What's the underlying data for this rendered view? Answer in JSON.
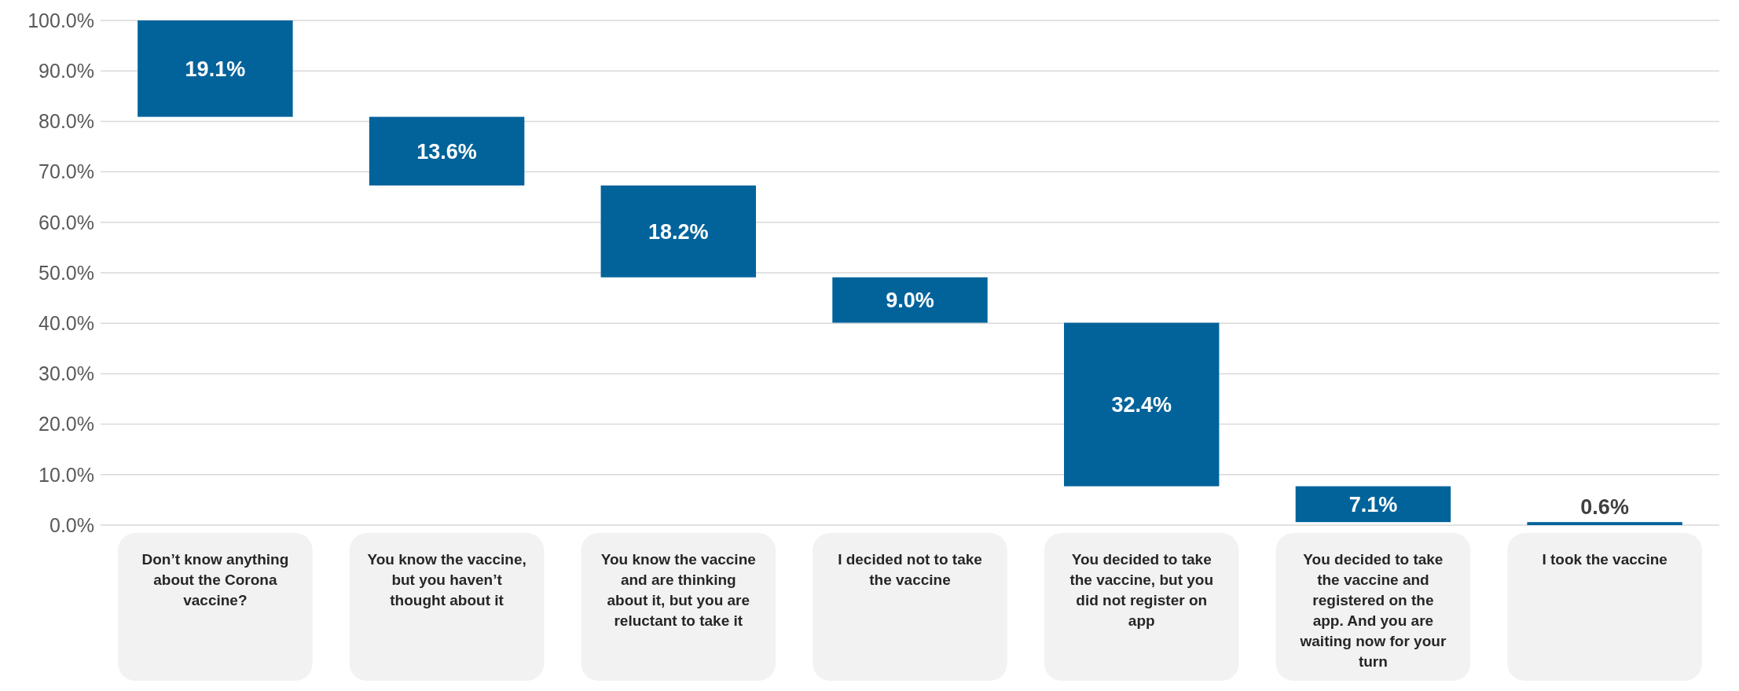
{
  "chart_data": {
    "type": "bar",
    "categories": [
      "Don’t know anything about the Corona vaccine?",
      "You know the vaccine, but you haven’t thought about it",
      "You know the vaccine and are thinking about it, but you are reluctant to take it",
      "I decided not to take the vaccine",
      "You decided to take the vaccine, but you did not register on app",
      "You decided to take the vaccine and registered on the app. And you are waiting now for your turn",
      "I took the vaccine"
    ],
    "values": [
      19.1,
      13.6,
      18.2,
      9.0,
      32.4,
      7.1,
      0.6
    ],
    "base": [
      80.9,
      67.3,
      49.1,
      40.1,
      7.7,
      0.6,
      0
    ],
    "color": "#02639b",
    "ylim": [
      0,
      100
    ],
    "yticks": [
      {
        "value": 0,
        "label": "0.0%"
      },
      {
        "value": 10,
        "label": "10.0%"
      },
      {
        "value": 20,
        "label": "20.0%"
      },
      {
        "value": 30,
        "label": "30.0%"
      },
      {
        "value": 40,
        "label": "40.0%"
      },
      {
        "value": 50,
        "label": "50.0%"
      },
      {
        "value": 60,
        "label": "60.0%"
      },
      {
        "value": 70,
        "label": "70.0%"
      },
      {
        "value": 80,
        "label": "80.0%"
      },
      {
        "value": 90,
        "label": "90.0%"
      },
      {
        "value": 100,
        "label": "100.0%"
      }
    ],
    "value_labels": [
      "19.1%",
      "13.6%",
      "18.2%",
      "9.0%",
      "32.4%",
      "7.1%",
      "0.6%"
    ],
    "grid": "y"
  }
}
